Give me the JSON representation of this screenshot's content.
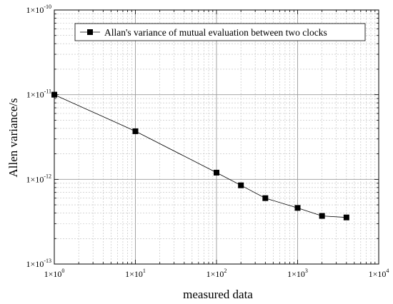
{
  "chart_data": {
    "type": "line",
    "x_scale": "log",
    "y_scale": "log",
    "xlim": [
      1,
      10000
    ],
    "ylim": [
      1e-13,
      1e-10
    ],
    "grid": true,
    "legend_position": "top",
    "xlabel": "measured data",
    "ylabel": "Allen variance/s",
    "x_tick_labels": [
      {
        "base": "1×10",
        "exp": "0"
      },
      {
        "base": "1×10",
        "exp": "1"
      },
      {
        "base": "1×10",
        "exp": "2"
      },
      {
        "base": "1×10",
        "exp": "3"
      },
      {
        "base": "1×10",
        "exp": "4"
      }
    ],
    "y_tick_labels": [
      {
        "base": "1×10",
        "exp": "-10"
      },
      {
        "base": "1×10",
        "exp": "-11"
      },
      {
        "base": "1×10",
        "exp": "-12"
      },
      {
        "base": "1×10",
        "exp": "-13"
      }
    ],
    "series": [
      {
        "name": "Allan's variance of mutual evaluation between two clocks",
        "color": "#000000",
        "marker": "square",
        "x": [
          1,
          10,
          100,
          200,
          400,
          1000,
          2000,
          4000
        ],
        "y": [
          1e-11,
          3.7e-12,
          1.2e-12,
          8.5e-13,
          6e-13,
          4.6e-13,
          3.7e-13,
          3.55e-13
        ]
      }
    ]
  }
}
